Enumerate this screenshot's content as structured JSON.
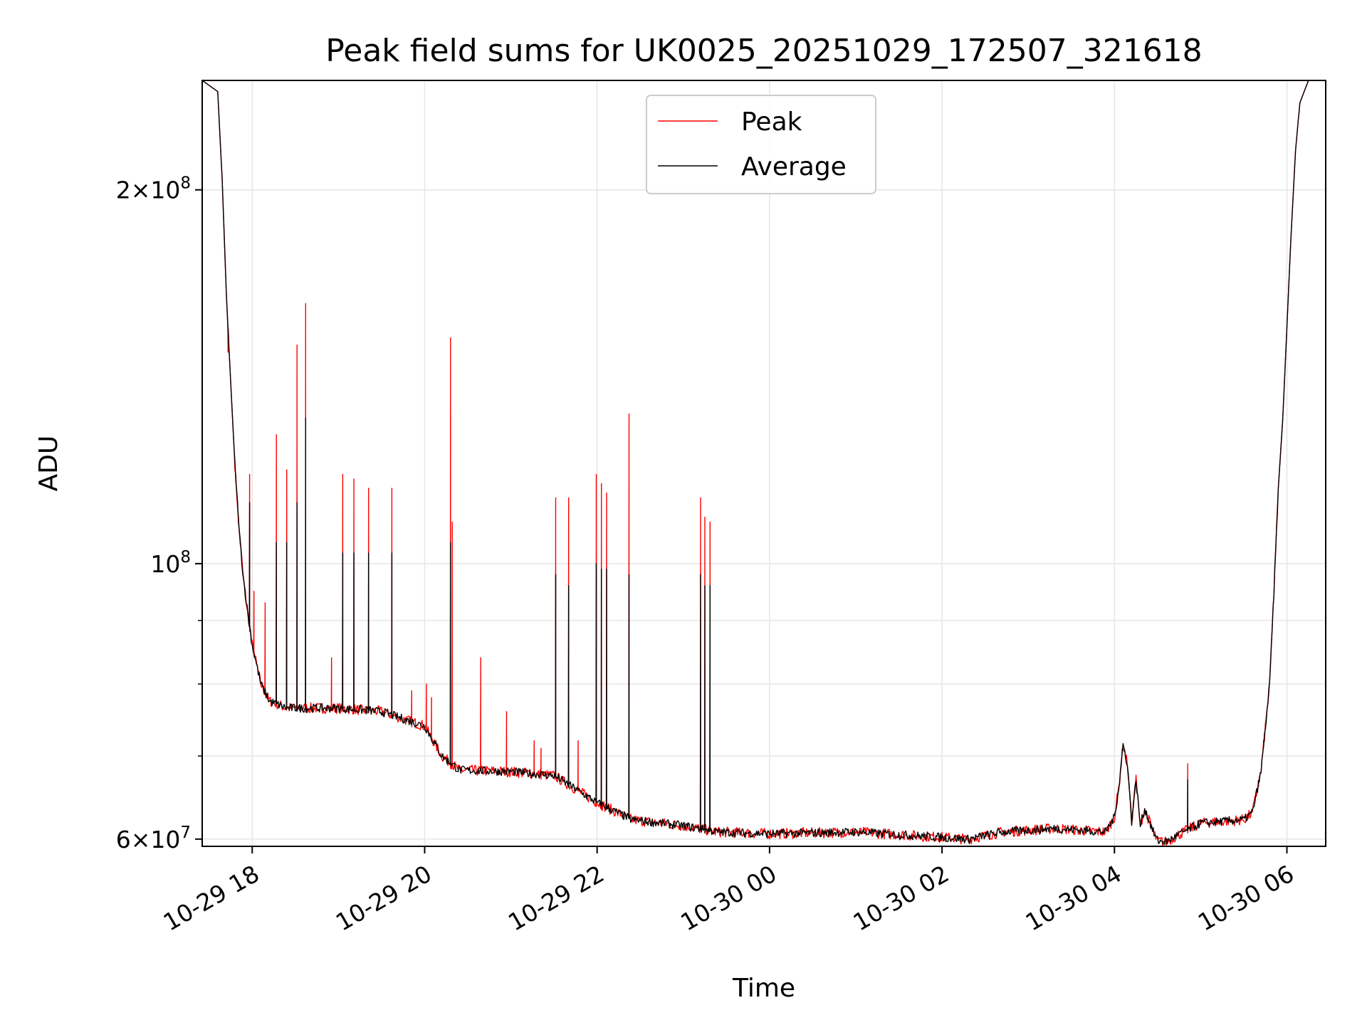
{
  "chart_data": {
    "type": "line",
    "title": "Peak field sums for UK0025_20251029_172507_321618",
    "xlabel": "Time",
    "ylabel": "ADU",
    "yscale": "log",
    "xlim_hours": [
      17.42,
      30.45
    ],
    "ylim": [
      59200000,
      245000000
    ],
    "x_ticks": [
      {
        "hour": 18,
        "label": "10-29 18"
      },
      {
        "hour": 20,
        "label": "10-29 20"
      },
      {
        "hour": 22,
        "label": "10-29 22"
      },
      {
        "hour": 24,
        "label": "10-30 00"
      },
      {
        "hour": 26,
        "label": "10-30 02"
      },
      {
        "hour": 28,
        "label": "10-30 04"
      },
      {
        "hour": 30,
        "label": "10-30 06"
      }
    ],
    "y_major_ticks": [
      {
        "value": 60000000,
        "mant": "6",
        "exp": "7"
      },
      {
        "value": 100000000,
        "mant": "",
        "exp": "8"
      },
      {
        "value": 200000000,
        "mant": "2",
        "exp": "8"
      }
    ],
    "y_minor_ticks": [
      70000000,
      80000000,
      90000000
    ],
    "grid": true,
    "legend": {
      "position": "top-center",
      "entries": [
        {
          "name": "Peak",
          "color": "#ff0000"
        },
        {
          "name": "Average",
          "color": "#000000"
        }
      ]
    },
    "baseline": [
      [
        17.42,
        245000000
      ],
      [
        17.6,
        240000000
      ],
      [
        17.65,
        205000000
      ],
      [
        17.7,
        165000000
      ],
      [
        17.75,
        140000000
      ],
      [
        17.8,
        120000000
      ],
      [
        17.85,
        106000000
      ],
      [
        17.9,
        97000000
      ],
      [
        17.95,
        91000000
      ],
      [
        18.0,
        86000000
      ],
      [
        18.1,
        80000000
      ],
      [
        18.2,
        77500000
      ],
      [
        18.4,
        76500000
      ],
      [
        19.0,
        76500000
      ],
      [
        19.5,
        76000000
      ],
      [
        20.0,
        74000000
      ],
      [
        20.2,
        70000000
      ],
      [
        20.4,
        68200000
      ],
      [
        21.0,
        68000000
      ],
      [
        21.5,
        67500000
      ],
      [
        22.0,
        64200000
      ],
      [
        22.4,
        62200000
      ],
      [
        23.0,
        61500000
      ],
      [
        23.4,
        60800000
      ],
      [
        24.0,
        60600000
      ],
      [
        25.0,
        60800000
      ],
      [
        25.5,
        60500000
      ],
      [
        26.0,
        60200000
      ],
      [
        26.3,
        60000000
      ],
      [
        26.7,
        60800000
      ],
      [
        27.3,
        61200000
      ],
      [
        27.9,
        60800000
      ],
      [
        28.0,
        62500000
      ],
      [
        28.05,
        66000000
      ],
      [
        28.1,
        71500000
      ],
      [
        28.15,
        69000000
      ],
      [
        28.2,
        62000000
      ],
      [
        28.25,
        67000000
      ],
      [
        28.3,
        61500000
      ],
      [
        28.35,
        63500000
      ],
      [
        28.45,
        60800000
      ],
      [
        28.5,
        59800000
      ],
      [
        28.6,
        59700000
      ],
      [
        28.8,
        60800000
      ],
      [
        29.0,
        61800000
      ],
      [
        29.5,
        62200000
      ],
      [
        29.6,
        63000000
      ],
      [
        29.7,
        68000000
      ],
      [
        29.8,
        80000000
      ],
      [
        29.85,
        95000000
      ],
      [
        29.9,
        115000000
      ],
      [
        29.95,
        130000000
      ],
      [
        30.0,
        155000000
      ],
      [
        30.05,
        185000000
      ],
      [
        30.1,
        215000000
      ],
      [
        30.15,
        235000000
      ],
      [
        30.25,
        245000000
      ],
      [
        30.45,
        245000000
      ]
    ],
    "peak_spikes": [
      [
        17.72,
        148000000
      ],
      [
        17.97,
        118000000
      ],
      [
        18.02,
        95000000
      ],
      [
        18.15,
        93000000
      ],
      [
        18.28,
        127000000
      ],
      [
        18.4,
        119000000
      ],
      [
        18.52,
        150000000
      ],
      [
        18.62,
        162000000
      ],
      [
        18.92,
        84000000
      ],
      [
        19.05,
        118000000
      ],
      [
        19.18,
        117000000
      ],
      [
        19.35,
        115000000
      ],
      [
        19.62,
        115000000
      ],
      [
        19.85,
        79000000
      ],
      [
        20.02,
        80000000
      ],
      [
        20.08,
        78000000
      ],
      [
        20.3,
        152000000
      ],
      [
        20.32,
        108000000
      ],
      [
        20.65,
        84000000
      ],
      [
        20.95,
        76000000
      ],
      [
        21.27,
        72000000
      ],
      [
        21.35,
        71000000
      ],
      [
        21.52,
        113000000
      ],
      [
        21.67,
        113000000
      ],
      [
        21.78,
        72000000
      ],
      [
        21.99,
        118000000
      ],
      [
        22.05,
        116000000
      ],
      [
        22.11,
        114000000
      ],
      [
        22.37,
        132000000
      ],
      [
        23.2,
        113000000
      ],
      [
        23.25,
        109000000
      ],
      [
        23.31,
        108000000
      ],
      [
        28.85,
        69000000
      ]
    ],
    "avg_spikes": [
      [
        17.97,
        112000000
      ],
      [
        18.28,
        104000000
      ],
      [
        18.4,
        104000000
      ],
      [
        18.52,
        112000000
      ],
      [
        18.62,
        131000000
      ],
      [
        19.05,
        102000000
      ],
      [
        19.18,
        102000000
      ],
      [
        19.35,
        102000000
      ],
      [
        19.62,
        102000000
      ],
      [
        20.3,
        104000000
      ],
      [
        21.52,
        98000000
      ],
      [
        21.67,
        96000000
      ],
      [
        21.99,
        100000000
      ],
      [
        22.05,
        99000000
      ],
      [
        22.11,
        99000000
      ],
      [
        22.37,
        98000000
      ],
      [
        23.2,
        98000000
      ],
      [
        23.25,
        96000000
      ],
      [
        23.31,
        96000000
      ],
      [
        28.85,
        67000000
      ]
    ]
  }
}
